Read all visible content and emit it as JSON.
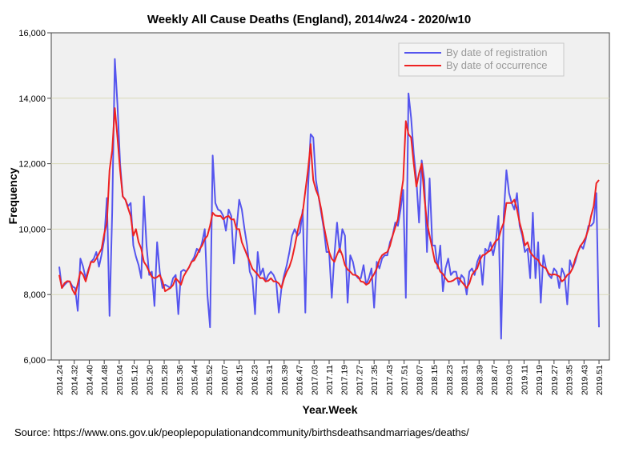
{
  "chart_data": {
    "type": "line",
    "title": "Weekly All Cause Deaths (England), 2014/w24 - 2020/w10",
    "xlabel": "Year.Week",
    "ylabel": "Frequency",
    "ylim": [
      6000,
      16000
    ],
    "yticks": [
      "6,000",
      "8,000",
      "10,000",
      "12,000",
      "14,000",
      "16,000"
    ],
    "xticks": [
      "2014.24",
      "2014.32",
      "2014.40",
      "2014.48",
      "2015.04",
      "2015.12",
      "2015.20",
      "2015.28",
      "2015.36",
      "2015.44",
      "2015.52",
      "2016.07",
      "2016.15",
      "2016.23",
      "2016.31",
      "2016.39",
      "2016.47",
      "2017.03",
      "2017.11",
      "2017.19",
      "2017.27",
      "2017.35",
      "2017.43",
      "2017.51",
      "2018.07",
      "2018.15",
      "2018.23",
      "2018.31",
      "2018.39",
      "2018.47",
      "2019.03",
      "2019.11",
      "2019.19",
      "2019.27",
      "2019.35",
      "2019.43",
      "2019.51"
    ],
    "legend": {
      "placement": "top-right"
    },
    "series": [
      {
        "name": "By date of registration",
        "color": "#5555ee",
        "anchors": [
          [
            0,
            8850
          ],
          [
            1,
            8200
          ],
          [
            2,
            8300
          ],
          [
            4,
            8400
          ],
          [
            6,
            8200
          ],
          [
            7,
            7500
          ],
          [
            8,
            9100
          ],
          [
            10,
            8500
          ],
          [
            12,
            9000
          ],
          [
            14,
            9300
          ],
          [
            15,
            8850
          ],
          [
            17,
            9700
          ],
          [
            18,
            10950
          ],
          [
            19,
            7350
          ],
          [
            20,
            10500
          ],
          [
            21,
            15200
          ],
          [
            22,
            13800
          ],
          [
            23,
            12000
          ],
          [
            24,
            11000
          ],
          [
            26,
            10700
          ],
          [
            27,
            10800
          ],
          [
            28,
            9500
          ],
          [
            30,
            8900
          ],
          [
            31,
            8500
          ],
          [
            32,
            11000
          ],
          [
            33,
            9500
          ],
          [
            34,
            8600
          ],
          [
            35,
            8700
          ],
          [
            36,
            7650
          ],
          [
            37,
            9600
          ],
          [
            38,
            8700
          ],
          [
            39,
            8200
          ],
          [
            40,
            8300
          ],
          [
            42,
            8200
          ],
          [
            43,
            8500
          ],
          [
            44,
            8600
          ],
          [
            45,
            7400
          ],
          [
            46,
            8700
          ],
          [
            48,
            8700
          ],
          [
            50,
            9000
          ],
          [
            52,
            9400
          ],
          [
            53,
            9300
          ],
          [
            54,
            9600
          ],
          [
            55,
            10000
          ],
          [
            56,
            8000
          ],
          [
            57,
            7000
          ],
          [
            58,
            12250
          ],
          [
            59,
            10800
          ],
          [
            60,
            10600
          ],
          [
            62,
            10400
          ],
          [
            63,
            9950
          ],
          [
            64,
            10600
          ],
          [
            65,
            10400
          ],
          [
            66,
            8950
          ],
          [
            67,
            10000
          ],
          [
            68,
            10900
          ],
          [
            69,
            10600
          ],
          [
            71,
            9500
          ],
          [
            72,
            8700
          ],
          [
            73,
            8500
          ],
          [
            74,
            7400
          ],
          [
            75,
            9300
          ],
          [
            76,
            8600
          ],
          [
            77,
            8800
          ],
          [
            78,
            8400
          ],
          [
            79,
            8600
          ],
          [
            80,
            8700
          ],
          [
            81,
            8600
          ],
          [
            82,
            8400
          ],
          [
            83,
            7450
          ],
          [
            84,
            8200
          ],
          [
            86,
            8900
          ],
          [
            88,
            9800
          ],
          [
            89,
            10000
          ],
          [
            90,
            9800
          ],
          [
            91,
            9900
          ],
          [
            92,
            10600
          ],
          [
            93,
            7450
          ],
          [
            94,
            11200
          ],
          [
            95,
            12900
          ],
          [
            96,
            12800
          ],
          [
            97,
            11500
          ],
          [
            98,
            11000
          ],
          [
            99,
            10500
          ],
          [
            100,
            10000
          ],
          [
            101,
            9300
          ],
          [
            102,
            9300
          ],
          [
            103,
            7900
          ],
          [
            104,
            9200
          ],
          [
            105,
            10200
          ],
          [
            106,
            9300
          ],
          [
            107,
            10000
          ],
          [
            108,
            9800
          ],
          [
            109,
            7750
          ],
          [
            110,
            9200
          ],
          [
            111,
            9000
          ],
          [
            112,
            8600
          ],
          [
            113,
            8500
          ],
          [
            114,
            8500
          ],
          [
            115,
            8900
          ],
          [
            116,
            8300
          ],
          [
            117,
            8500
          ],
          [
            118,
            8800
          ],
          [
            119,
            7600
          ],
          [
            120,
            9000
          ],
          [
            121,
            8800
          ],
          [
            122,
            9100
          ],
          [
            123,
            9200
          ],
          [
            124,
            9200
          ],
          [
            125,
            9600
          ],
          [
            126,
            9800
          ],
          [
            127,
            10200
          ],
          [
            128,
            10100
          ],
          [
            129,
            10600
          ],
          [
            130,
            11200
          ],
          [
            131,
            7900
          ],
          [
            132,
            14150
          ],
          [
            133,
            13400
          ],
          [
            134,
            12300
          ],
          [
            135,
            11500
          ],
          [
            136,
            10200
          ],
          [
            137,
            12100
          ],
          [
            138,
            11500
          ],
          [
            139,
            9300
          ],
          [
            140,
            11550
          ],
          [
            141,
            9500
          ],
          [
            142,
            9500
          ],
          [
            143,
            8800
          ],
          [
            144,
            9500
          ],
          [
            145,
            8100
          ],
          [
            146,
            8800
          ],
          [
            147,
            9100
          ],
          [
            148,
            8600
          ],
          [
            149,
            8700
          ],
          [
            150,
            8700
          ],
          [
            151,
            8300
          ],
          [
            152,
            8600
          ],
          [
            153,
            8500
          ],
          [
            154,
            8000
          ],
          [
            155,
            8700
          ],
          [
            156,
            8800
          ],
          [
            157,
            8600
          ],
          [
            158,
            9000
          ],
          [
            159,
            9200
          ],
          [
            160,
            8300
          ],
          [
            161,
            9400
          ],
          [
            162,
            9300
          ],
          [
            163,
            9600
          ],
          [
            164,
            9200
          ],
          [
            165,
            9600
          ],
          [
            166,
            10400
          ],
          [
            167,
            6650
          ],
          [
            168,
            10450
          ],
          [
            169,
            11800
          ],
          [
            170,
            11100
          ],
          [
            171,
            10800
          ],
          [
            172,
            10600
          ],
          [
            173,
            11100
          ],
          [
            174,
            10100
          ],
          [
            175,
            9800
          ],
          [
            176,
            9300
          ],
          [
            177,
            9400
          ],
          [
            178,
            8500
          ],
          [
            179,
            10500
          ],
          [
            180,
            8500
          ],
          [
            181,
            9600
          ],
          [
            182,
            7750
          ],
          [
            183,
            9200
          ],
          [
            184,
            8800
          ],
          [
            185,
            8600
          ],
          [
            186,
            8500
          ],
          [
            187,
            8800
          ],
          [
            188,
            8700
          ],
          [
            189,
            8200
          ],
          [
            190,
            8800
          ],
          [
            191,
            8600
          ],
          [
            192,
            7700
          ],
          [
            193,
            9050
          ],
          [
            194,
            8800
          ],
          [
            195,
            9000
          ],
          [
            196,
            9300
          ],
          [
            197,
            9500
          ],
          [
            198,
            9400
          ],
          [
            199,
            9700
          ],
          [
            200,
            10100
          ],
          [
            201,
            10100
          ],
          [
            202,
            10200
          ],
          [
            203,
            11100
          ],
          [
            204,
            7000
          ]
        ]
      },
      {
        "name": "By date of occurrence",
        "color": "#ee2222",
        "anchors": [
          [
            0,
            8600
          ],
          [
            1,
            8200
          ],
          [
            2,
            8350
          ],
          [
            4,
            8400
          ],
          [
            6,
            8000
          ],
          [
            8,
            8700
          ],
          [
            10,
            8400
          ],
          [
            12,
            9000
          ],
          [
            14,
            9100
          ],
          [
            16,
            9400
          ],
          [
            18,
            10200
          ],
          [
            19,
            11800
          ],
          [
            20,
            12400
          ],
          [
            21,
            13700
          ],
          [
            22,
            12800
          ],
          [
            23,
            11800
          ],
          [
            24,
            11000
          ],
          [
            25,
            10900
          ],
          [
            27,
            10400
          ],
          [
            28,
            9800
          ],
          [
            29,
            10000
          ],
          [
            30,
            9600
          ],
          [
            31,
            9400
          ],
          [
            32,
            9000
          ],
          [
            34,
            8700
          ],
          [
            36,
            8500
          ],
          [
            38,
            8600
          ],
          [
            40,
            8100
          ],
          [
            42,
            8200
          ],
          [
            44,
            8500
          ],
          [
            46,
            8300
          ],
          [
            48,
            8700
          ],
          [
            50,
            9000
          ],
          [
            52,
            9200
          ],
          [
            54,
            9500
          ],
          [
            56,
            9800
          ],
          [
            58,
            10500
          ],
          [
            60,
            10400
          ],
          [
            62,
            10300
          ],
          [
            64,
            10400
          ],
          [
            66,
            10300
          ],
          [
            67,
            10000
          ],
          [
            68,
            10000
          ],
          [
            69,
            9600
          ],
          [
            70,
            9400
          ],
          [
            72,
            9000
          ],
          [
            74,
            8700
          ],
          [
            76,
            8500
          ],
          [
            78,
            8400
          ],
          [
            80,
            8500
          ],
          [
            82,
            8400
          ],
          [
            84,
            8200
          ],
          [
            86,
            8700
          ],
          [
            88,
            9100
          ],
          [
            90,
            9900
          ],
          [
            92,
            10500
          ],
          [
            94,
            11800
          ],
          [
            95,
            12600
          ],
          [
            96,
            11500
          ],
          [
            97,
            11200
          ],
          [
            98,
            11000
          ],
          [
            100,
            10100
          ],
          [
            102,
            9300
          ],
          [
            104,
            9000
          ],
          [
            106,
            9400
          ],
          [
            108,
            8900
          ],
          [
            110,
            8700
          ],
          [
            112,
            8600
          ],
          [
            114,
            8400
          ],
          [
            116,
            8300
          ],
          [
            118,
            8500
          ],
          [
            120,
            8800
          ],
          [
            122,
            9200
          ],
          [
            124,
            9300
          ],
          [
            126,
            9800
          ],
          [
            128,
            10300
          ],
          [
            130,
            11500
          ],
          [
            131,
            13300
          ],
          [
            132,
            12900
          ],
          [
            133,
            12800
          ],
          [
            134,
            12000
          ],
          [
            135,
            11300
          ],
          [
            136,
            11700
          ],
          [
            137,
            12000
          ],
          [
            138,
            11000
          ],
          [
            139,
            10200
          ],
          [
            140,
            9800
          ],
          [
            141,
            9400
          ],
          [
            142,
            9000
          ],
          [
            144,
            8700
          ],
          [
            146,
            8500
          ],
          [
            148,
            8400
          ],
          [
            150,
            8500
          ],
          [
            152,
            8400
          ],
          [
            154,
            8200
          ],
          [
            156,
            8600
          ],
          [
            158,
            8800
          ],
          [
            160,
            9200
          ],
          [
            162,
            9300
          ],
          [
            164,
            9500
          ],
          [
            166,
            9700
          ],
          [
            168,
            10200
          ],
          [
            169,
            10800
          ],
          [
            170,
            10800
          ],
          [
            171,
            10800
          ],
          [
            172,
            10900
          ],
          [
            173,
            10600
          ],
          [
            174,
            10200
          ],
          [
            175,
            9900
          ],
          [
            176,
            9500
          ],
          [
            177,
            9600
          ],
          [
            178,
            9300
          ],
          [
            180,
            9100
          ],
          [
            182,
            8900
          ],
          [
            184,
            8800
          ],
          [
            186,
            8600
          ],
          [
            188,
            8600
          ],
          [
            190,
            8400
          ],
          [
            192,
            8600
          ],
          [
            194,
            8800
          ],
          [
            196,
            9300
          ],
          [
            198,
            9600
          ],
          [
            200,
            10000
          ],
          [
            201,
            10400
          ],
          [
            202,
            10700
          ],
          [
            203,
            11400
          ],
          [
            204,
            11500
          ]
        ]
      }
    ]
  },
  "source_text": "Source: https://www.ons.gov.uk/peoplepopulationandcommunity/birthsdeathsandmarriages/deaths/"
}
